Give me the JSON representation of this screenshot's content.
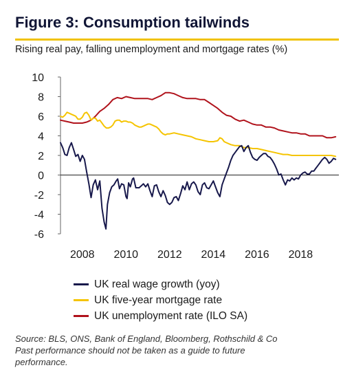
{
  "header": {
    "title": "Figure 3: Consumption tailwinds",
    "subtitle": "Rising real pay, falling unemployment and mortgage rates (%)"
  },
  "colors": {
    "title": "#101535",
    "rule": "#f0c200",
    "wage": "#17184b",
    "mortgage": "#f5c400",
    "unemployment": "#b0121b"
  },
  "legend": [
    {
      "label": "UK real wage growth (yoy)",
      "color": "#17184b"
    },
    {
      "label": "UK five-year mortgage rate",
      "color": "#f5c400"
    },
    {
      "label": "UK unemployment rate (ILO SA)",
      "color": "#b0121b"
    }
  ],
  "source": {
    "line1": "Source: BLS, ONS, Bank of England, Bloomberg, Rothschild & Co",
    "line2": "Past performance should not be taken as a guide to future",
    "line3": "performance."
  },
  "chart_data": {
    "type": "line",
    "xlim": [
      2007.0,
      2019.75
    ],
    "ylim": [
      -6,
      10
    ],
    "x_ticks": [
      2008,
      2010,
      2012,
      2014,
      2016,
      2018
    ],
    "x_tick_labels": [
      "2008",
      "2010",
      "2012",
      "2014",
      "2016",
      "2018"
    ],
    "y_ticks": [
      -6,
      -4,
      -2,
      0,
      2,
      4,
      6,
      8,
      10
    ],
    "y_tick_labels": [
      "-6",
      "-4",
      "-2",
      "0",
      "2",
      "4",
      "6",
      "8",
      "10"
    ],
    "grid": false,
    "legend_position": "bottom",
    "series": [
      {
        "name": "UK real wage growth (yoy)",
        "color": "#17184b",
        "points": [
          [
            2007.0,
            3.3
          ],
          [
            2007.1,
            2.8
          ],
          [
            2007.2,
            2.1
          ],
          [
            2007.3,
            2.0
          ],
          [
            2007.4,
            2.8
          ],
          [
            2007.5,
            3.3
          ],
          [
            2007.6,
            2.6
          ],
          [
            2007.7,
            1.9
          ],
          [
            2007.8,
            2.1
          ],
          [
            2007.9,
            1.4
          ],
          [
            2008.0,
            2.0
          ],
          [
            2008.1,
            1.6
          ],
          [
            2008.2,
            0.3
          ],
          [
            2008.3,
            -0.9
          ],
          [
            2008.4,
            -2.3
          ],
          [
            2008.5,
            -1.0
          ],
          [
            2008.6,
            -0.5
          ],
          [
            2008.7,
            -1.5
          ],
          [
            2008.8,
            -0.6
          ],
          [
            2008.9,
            -3.4
          ],
          [
            2009.0,
            -4.8
          ],
          [
            2009.08,
            -5.5
          ],
          [
            2009.15,
            -3.0
          ],
          [
            2009.25,
            -1.8
          ],
          [
            2009.35,
            -1.2
          ],
          [
            2009.45,
            -1.0
          ],
          [
            2009.55,
            -0.6
          ],
          [
            2009.62,
            -0.4
          ],
          [
            2009.7,
            -1.4
          ],
          [
            2009.8,
            -0.9
          ],
          [
            2009.9,
            -1.0
          ],
          [
            2010.0,
            -2.2
          ],
          [
            2010.05,
            -2.4
          ],
          [
            2010.12,
            -0.8
          ],
          [
            2010.2,
            -1.2
          ],
          [
            2010.3,
            -0.4
          ],
          [
            2010.35,
            -0.3
          ],
          [
            2010.45,
            -1.3
          ],
          [
            2010.6,
            -1.3
          ],
          [
            2010.7,
            -1.1
          ],
          [
            2010.8,
            -0.9
          ],
          [
            2010.9,
            -1.2
          ],
          [
            2011.0,
            -0.9
          ],
          [
            2011.1,
            -1.6
          ],
          [
            2011.2,
            -2.2
          ],
          [
            2011.3,
            -1.1
          ],
          [
            2011.4,
            -1.0
          ],
          [
            2011.5,
            -1.7
          ],
          [
            2011.6,
            -2.2
          ],
          [
            2011.7,
            -1.6
          ],
          [
            2011.8,
            -2.1
          ],
          [
            2011.9,
            -2.8
          ],
          [
            2012.0,
            -3.0
          ],
          [
            2012.1,
            -2.8
          ],
          [
            2012.2,
            -2.3
          ],
          [
            2012.3,
            -2.2
          ],
          [
            2012.4,
            -2.6
          ],
          [
            2012.5,
            -1.9
          ],
          [
            2012.6,
            -1.1
          ],
          [
            2012.7,
            -1.5
          ],
          [
            2012.8,
            -0.7
          ],
          [
            2012.9,
            -1.5
          ],
          [
            2013.0,
            -0.9
          ],
          [
            2013.1,
            -0.7
          ],
          [
            2013.2,
            -1.0
          ],
          [
            2013.3,
            -1.7
          ],
          [
            2013.4,
            -2.0
          ],
          [
            2013.5,
            -1.0
          ],
          [
            2013.6,
            -0.8
          ],
          [
            2013.7,
            -1.3
          ],
          [
            2013.8,
            -1.4
          ],
          [
            2013.9,
            -1.0
          ],
          [
            2014.0,
            -0.6
          ],
          [
            2014.1,
            -1.2
          ],
          [
            2014.2,
            -1.8
          ],
          [
            2014.3,
            -2.2
          ],
          [
            2014.4,
            -1.0
          ],
          [
            2014.5,
            -0.4
          ],
          [
            2014.6,
            0.2
          ],
          [
            2014.7,
            0.8
          ],
          [
            2014.8,
            1.5
          ],
          [
            2014.9,
            2.0
          ],
          [
            2015.0,
            2.3
          ],
          [
            2015.1,
            2.6
          ],
          [
            2015.2,
            2.9
          ],
          [
            2015.3,
            3.0
          ],
          [
            2015.4,
            2.4
          ],
          [
            2015.5,
            2.8
          ],
          [
            2015.6,
            3.0
          ],
          [
            2015.7,
            2.3
          ],
          [
            2015.8,
            1.8
          ],
          [
            2015.9,
            1.6
          ],
          [
            2016.0,
            1.5
          ],
          [
            2016.1,
            1.8
          ],
          [
            2016.2,
            2.0
          ],
          [
            2016.3,
            2.2
          ],
          [
            2016.4,
            2.2
          ],
          [
            2016.5,
            1.9
          ],
          [
            2016.6,
            1.8
          ],
          [
            2016.7,
            1.5
          ],
          [
            2016.8,
            1.1
          ],
          [
            2016.9,
            0.6
          ],
          [
            2017.0,
            0.0
          ],
          [
            2017.1,
            0.1
          ],
          [
            2017.2,
            -0.5
          ],
          [
            2017.3,
            -1.0
          ],
          [
            2017.4,
            -0.5
          ],
          [
            2017.5,
            -0.6
          ],
          [
            2017.6,
            -0.3
          ],
          [
            2017.7,
            -0.5
          ],
          [
            2017.8,
            -0.3
          ],
          [
            2017.9,
            -0.4
          ],
          [
            2018.0,
            0.0
          ],
          [
            2018.1,
            0.2
          ],
          [
            2018.2,
            0.3
          ],
          [
            2018.3,
            0.1
          ],
          [
            2018.4,
            0.1
          ],
          [
            2018.5,
            0.4
          ],
          [
            2018.6,
            0.4
          ],
          [
            2018.7,
            0.7
          ],
          [
            2018.8,
            1.0
          ],
          [
            2018.9,
            1.3
          ],
          [
            2019.0,
            1.6
          ],
          [
            2019.1,
            1.8
          ],
          [
            2019.2,
            1.6
          ],
          [
            2019.3,
            1.2
          ],
          [
            2019.4,
            1.4
          ],
          [
            2019.5,
            1.7
          ],
          [
            2019.6,
            1.6
          ]
        ]
      },
      {
        "name": "UK five-year mortgage rate",
        "color": "#f5c400",
        "points": [
          [
            2007.0,
            6.0
          ],
          [
            2007.1,
            5.9
          ],
          [
            2007.2,
            6.1
          ],
          [
            2007.3,
            6.4
          ],
          [
            2007.4,
            6.3
          ],
          [
            2007.5,
            6.2
          ],
          [
            2007.6,
            6.1
          ],
          [
            2007.7,
            6.0
          ],
          [
            2007.8,
            5.7
          ],
          [
            2007.9,
            5.7
          ],
          [
            2008.0,
            5.9
          ],
          [
            2008.1,
            6.3
          ],
          [
            2008.2,
            6.4
          ],
          [
            2008.3,
            6.1
          ],
          [
            2008.4,
            5.6
          ],
          [
            2008.5,
            5.8
          ],
          [
            2008.6,
            5.8
          ],
          [
            2008.7,
            5.5
          ],
          [
            2008.8,
            5.6
          ],
          [
            2008.9,
            5.3
          ],
          [
            2009.0,
            5.0
          ],
          [
            2009.1,
            4.8
          ],
          [
            2009.2,
            4.8
          ],
          [
            2009.3,
            4.9
          ],
          [
            2009.4,
            5.1
          ],
          [
            2009.5,
            5.5
          ],
          [
            2009.6,
            5.6
          ],
          [
            2009.7,
            5.6
          ],
          [
            2009.8,
            5.4
          ],
          [
            2009.9,
            5.5
          ],
          [
            2010.0,
            5.5
          ],
          [
            2010.1,
            5.4
          ],
          [
            2010.2,
            5.4
          ],
          [
            2010.3,
            5.3
          ],
          [
            2010.4,
            5.1
          ],
          [
            2010.5,
            5.0
          ],
          [
            2010.6,
            4.9
          ],
          [
            2010.7,
            4.9
          ],
          [
            2010.8,
            5.0
          ],
          [
            2010.9,
            5.1
          ],
          [
            2011.0,
            5.2
          ],
          [
            2011.1,
            5.2
          ],
          [
            2011.2,
            5.1
          ],
          [
            2011.3,
            5.0
          ],
          [
            2011.4,
            4.9
          ],
          [
            2011.5,
            4.7
          ],
          [
            2011.6,
            4.4
          ],
          [
            2011.7,
            4.2
          ],
          [
            2011.8,
            4.1
          ],
          [
            2011.9,
            4.2
          ],
          [
            2012.0,
            4.2
          ],
          [
            2012.2,
            4.3
          ],
          [
            2012.4,
            4.2
          ],
          [
            2012.6,
            4.1
          ],
          [
            2012.8,
            4.0
          ],
          [
            2013.0,
            3.9
          ],
          [
            2013.2,
            3.7
          ],
          [
            2013.4,
            3.6
          ],
          [
            2013.6,
            3.5
          ],
          [
            2013.8,
            3.4
          ],
          [
            2014.0,
            3.4
          ],
          [
            2014.2,
            3.5
          ],
          [
            2014.3,
            3.8
          ],
          [
            2014.4,
            3.7
          ],
          [
            2014.5,
            3.4
          ],
          [
            2014.6,
            3.3
          ],
          [
            2014.8,
            3.1
          ],
          [
            2015.0,
            3.0
          ],
          [
            2015.2,
            3.0
          ],
          [
            2015.4,
            2.8
          ],
          [
            2015.6,
            2.8
          ],
          [
            2015.8,
            2.7
          ],
          [
            2016.0,
            2.7
          ],
          [
            2016.2,
            2.6
          ],
          [
            2016.4,
            2.5
          ],
          [
            2016.6,
            2.4
          ],
          [
            2016.8,
            2.3
          ],
          [
            2017.0,
            2.2
          ],
          [
            2017.2,
            2.1
          ],
          [
            2017.4,
            2.1
          ],
          [
            2017.6,
            2.0
          ],
          [
            2017.8,
            2.0
          ],
          [
            2018.0,
            2.0
          ],
          [
            2018.2,
            2.0
          ],
          [
            2018.4,
            2.0
          ],
          [
            2018.6,
            2.0
          ],
          [
            2018.8,
            2.0
          ],
          [
            2019.0,
            2.0
          ],
          [
            2019.2,
            2.0
          ],
          [
            2019.4,
            2.0
          ],
          [
            2019.6,
            1.9
          ]
        ]
      },
      {
        "name": "UK unemployment rate (ILO SA)",
        "color": "#b0121b",
        "points": [
          [
            2007.0,
            5.6
          ],
          [
            2007.2,
            5.5
          ],
          [
            2007.4,
            5.4
          ],
          [
            2007.6,
            5.3
          ],
          [
            2007.8,
            5.3
          ],
          [
            2008.0,
            5.3
          ],
          [
            2008.2,
            5.4
          ],
          [
            2008.4,
            5.6
          ],
          [
            2008.6,
            6.0
          ],
          [
            2008.8,
            6.5
          ],
          [
            2009.0,
            6.8
          ],
          [
            2009.2,
            7.2
          ],
          [
            2009.4,
            7.7
          ],
          [
            2009.6,
            7.9
          ],
          [
            2009.8,
            7.8
          ],
          [
            2010.0,
            8.0
          ],
          [
            2010.2,
            7.9
          ],
          [
            2010.4,
            7.8
          ],
          [
            2010.6,
            7.8
          ],
          [
            2010.8,
            7.8
          ],
          [
            2011.0,
            7.8
          ],
          [
            2011.2,
            7.7
          ],
          [
            2011.4,
            7.9
          ],
          [
            2011.6,
            8.1
          ],
          [
            2011.8,
            8.4
          ],
          [
            2012.0,
            8.4
          ],
          [
            2012.2,
            8.3
          ],
          [
            2012.4,
            8.1
          ],
          [
            2012.6,
            7.9
          ],
          [
            2012.8,
            7.8
          ],
          [
            2013.0,
            7.8
          ],
          [
            2013.2,
            7.8
          ],
          [
            2013.4,
            7.7
          ],
          [
            2013.6,
            7.7
          ],
          [
            2013.8,
            7.4
          ],
          [
            2014.0,
            7.1
          ],
          [
            2014.2,
            6.8
          ],
          [
            2014.4,
            6.4
          ],
          [
            2014.6,
            6.1
          ],
          [
            2014.8,
            6.0
          ],
          [
            2015.0,
            5.7
          ],
          [
            2015.2,
            5.5
          ],
          [
            2015.4,
            5.6
          ],
          [
            2015.6,
            5.4
          ],
          [
            2015.8,
            5.2
          ],
          [
            2016.0,
            5.1
          ],
          [
            2016.2,
            5.1
          ],
          [
            2016.4,
            4.9
          ],
          [
            2016.6,
            4.9
          ],
          [
            2016.8,
            4.8
          ],
          [
            2017.0,
            4.6
          ],
          [
            2017.2,
            4.5
          ],
          [
            2017.4,
            4.4
          ],
          [
            2017.6,
            4.3
          ],
          [
            2017.8,
            4.3
          ],
          [
            2018.0,
            4.2
          ],
          [
            2018.2,
            4.2
          ],
          [
            2018.4,
            4.0
          ],
          [
            2018.6,
            4.0
          ],
          [
            2018.8,
            4.0
          ],
          [
            2019.0,
            4.0
          ],
          [
            2019.2,
            3.8
          ],
          [
            2019.4,
            3.8
          ],
          [
            2019.6,
            3.9
          ]
        ]
      }
    ]
  }
}
